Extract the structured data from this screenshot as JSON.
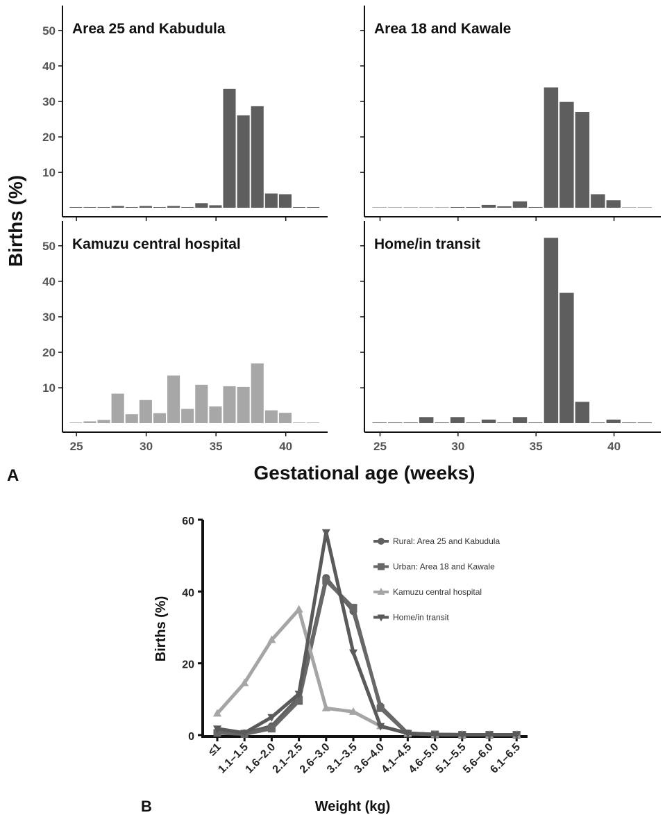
{
  "chart_data": [
    {
      "type": "bar",
      "panel_label": "A",
      "xlabel": "Gestational age (weeks)",
      "ylabel": "Births (%)",
      "xlim": [
        24,
        43
      ],
      "ylim": [
        -2.5,
        57
      ],
      "xticks": [
        25,
        30,
        35,
        40
      ],
      "yticks": [
        10,
        20,
        30,
        40,
        50
      ],
      "x": [
        25,
        26,
        27,
        28,
        29,
        30,
        31,
        32,
        33,
        34,
        35,
        36,
        37,
        38,
        39,
        40,
        41,
        42
      ],
      "panels": [
        {
          "title": "Area 25 and Kabudula",
          "color": "#5e5e5e",
          "values": [
            0.3,
            0.3,
            0.3,
            0.6,
            0.3,
            0.6,
            0.3,
            0.6,
            0.3,
            1.4,
            0.8,
            33.6,
            26.1,
            28.7,
            4.1,
            3.9,
            0.3,
            0.3
          ]
        },
        {
          "title": "Area 18 and Kawale",
          "color": "#5e5e5e",
          "values": [
            0.2,
            0.2,
            0.2,
            0.2,
            0.2,
            0.3,
            0.3,
            0.9,
            0.5,
            1.9,
            0.3,
            34.0,
            29.9,
            27.1,
            3.9,
            2.2,
            0.2,
            0.2
          ]
        },
        {
          "title": "Kamuzu central hospital",
          "color": "#a7a7a7",
          "values": [
            0.3,
            0.6,
            1.0,
            8.4,
            2.6,
            6.6,
            2.9,
            13.5,
            4.1,
            10.9,
            4.8,
            10.5,
            10.3,
            16.9,
            3.7,
            3.0,
            0.3,
            0.3
          ]
        },
        {
          "title": "Home/in transit",
          "color": "#5e5e5e",
          "values": [
            0.3,
            0.3,
            0.3,
            1.8,
            0.3,
            1.8,
            0.3,
            1.1,
            0.3,
            1.8,
            0.3,
            52.3,
            36.8,
            6.1,
            0.3,
            1.1,
            0.3,
            0.3
          ]
        }
      ]
    },
    {
      "type": "line",
      "panel_label": "B",
      "xlabel": "Weight (kg)",
      "ylabel": "Births (%)",
      "ylim": [
        0,
        60
      ],
      "yticks": [
        0,
        20,
        40,
        60
      ],
      "categories": [
        "≤1",
        "1.1–1.5",
        "1.6–2.0",
        "2.1–2.5",
        "2.6–3.0",
        "3.1–3.5",
        "3.6–4.0",
        "4.1–4.5",
        "4.6–5.0",
        "5.1–5.5",
        "5.6–6.0",
        "6.1–6.5"
      ],
      "legend_position": "top-right",
      "series": [
        {
          "name": "Rural: Area 25 and Kabudula",
          "marker": "circle",
          "color": "#606060",
          "values": [
            0.8,
            0.5,
            2.5,
            10.5,
            43.8,
            34.5,
            8.0,
            0.5,
            0.2,
            0.1,
            0.1,
            0.1
          ]
        },
        {
          "name": "Urban: Area 18 and Kawale",
          "marker": "square",
          "color": "#686868",
          "values": [
            0.6,
            0.3,
            1.8,
            9.5,
            43.0,
            35.5,
            7.5,
            0.4,
            0.2,
            0.1,
            0.1,
            0.1
          ]
        },
        {
          "name": "Kamuzu central hospital",
          "marker": "triangle-up",
          "color": "#a5a5a5",
          "values": [
            6.0,
            14.5,
            26.5,
            35.0,
            7.5,
            6.5,
            2.5,
            0.5,
            0.2,
            0.1,
            0.1,
            0.1
          ]
        },
        {
          "name": "Home/in transit",
          "marker": "triangle-down",
          "color": "#5a5a5a",
          "values": [
            1.8,
            0.6,
            5.0,
            11.5,
            56.5,
            23.0,
            2.5,
            0.5,
            0.2,
            0.1,
            0.1,
            0.1
          ]
        }
      ]
    }
  ]
}
